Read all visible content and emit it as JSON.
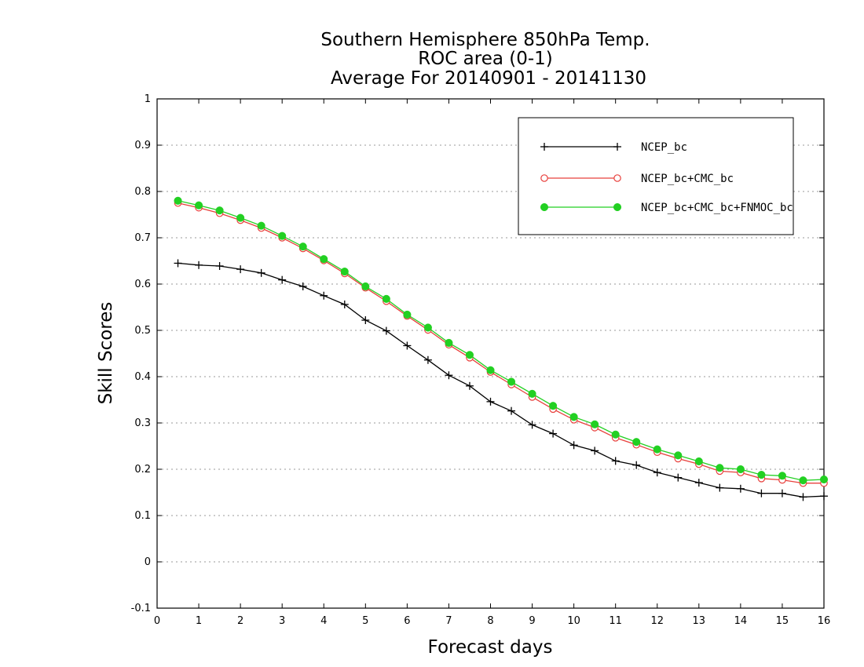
{
  "chart_data": {
    "type": "line",
    "title": [
      "Southern Hemisphere 850hPa Temp.",
      "ROC area (0-1)",
      "Average For 20140901 - 20141130"
    ],
    "xlabel": "Forecast days",
    "ylabel": "Skill Scores",
    "xlim": [
      0,
      16
    ],
    "ylim": [
      -0.1,
      1
    ],
    "xticks": [
      "0",
      "1",
      "2",
      "3",
      "4",
      "5",
      "6",
      "7",
      "8",
      "9",
      "10",
      "11",
      "12",
      "13",
      "14",
      "15",
      "16"
    ],
    "yticks": [
      "-0.1",
      "0",
      "0.1",
      "0.2",
      "0.3",
      "0.4",
      "0.5",
      "0.6",
      "0.7",
      "0.8",
      "0.9",
      "1"
    ],
    "grid": "horizontal dotted",
    "legend_position": "top-right",
    "x": [
      0.5,
      1,
      1.5,
      2,
      2.5,
      3,
      3.5,
      4,
      4.5,
      5,
      5.5,
      6,
      6.5,
      7,
      7.5,
      8,
      8.5,
      9,
      9.5,
      10,
      10.5,
      11,
      11.5,
      12,
      12.5,
      13,
      13.5,
      14,
      14.5,
      15,
      15.5,
      16
    ],
    "series": [
      {
        "name": "NCEP_bc",
        "color": "#000000",
        "marker": "plus",
        "values": [
          0.645,
          0.641,
          0.639,
          0.632,
          0.624,
          0.609,
          0.595,
          0.575,
          0.556,
          0.522,
          0.499,
          0.467,
          0.436,
          0.403,
          0.38,
          0.346,
          0.326,
          0.296,
          0.277,
          0.252,
          0.24,
          0.218,
          0.209,
          0.193,
          0.182,
          0.171,
          0.16,
          0.158,
          0.148,
          0.148,
          0.14,
          0.142
        ]
      },
      {
        "name": "NCEP_bc+CMC_bc",
        "color": "#e8403c",
        "marker": "open-circle",
        "values": [
          0.775,
          0.765,
          0.753,
          0.738,
          0.721,
          0.7,
          0.677,
          0.651,
          0.623,
          0.592,
          0.563,
          0.531,
          0.501,
          0.469,
          0.441,
          0.41,
          0.383,
          0.356,
          0.33,
          0.307,
          0.29,
          0.268,
          0.253,
          0.237,
          0.223,
          0.211,
          0.196,
          0.193,
          0.18,
          0.177,
          0.17,
          0.17
        ]
      },
      {
        "name": "NCEP_bc+CMC_bc+FNMOC_bc",
        "color": "#22d022",
        "marker": "filled-circle",
        "values": [
          0.78,
          0.77,
          0.759,
          0.743,
          0.726,
          0.704,
          0.681,
          0.654,
          0.627,
          0.595,
          0.568,
          0.534,
          0.506,
          0.473,
          0.447,
          0.414,
          0.389,
          0.363,
          0.337,
          0.313,
          0.297,
          0.275,
          0.259,
          0.243,
          0.23,
          0.217,
          0.203,
          0.2,
          0.188,
          0.186,
          0.176,
          0.178
        ]
      }
    ]
  }
}
